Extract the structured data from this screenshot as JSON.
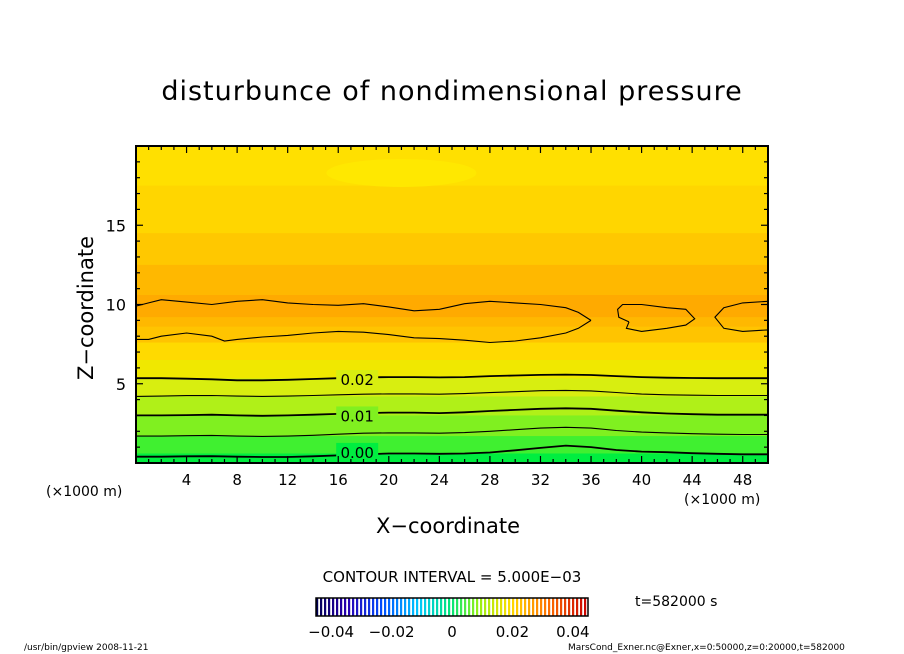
{
  "chart_data": {
    "type": "contour",
    "title": "disturbunce of nondimensional pressure",
    "xlabel": "X−coordinate",
    "ylabel": "Z−coordinate",
    "x_unit_label": "(×1000 m)",
    "x_ticks": [
      "4",
      "8",
      "12",
      "16",
      "20",
      "24",
      "28",
      "32",
      "36",
      "40",
      "44",
      "48"
    ],
    "y_ticks": [
      "5",
      "10",
      "15"
    ],
    "xlim": [
      0,
      50
    ],
    "ylim": [
      0,
      20
    ],
    "contour_interval_text": "CONTOUR INTERVAL = 5.000E−03",
    "contour_labels": [
      {
        "x": 17.5,
        "z": 5.3,
        "text": "0.02"
      },
      {
        "x": 17.5,
        "z": 3.0,
        "text": "0.01"
      },
      {
        "x": 17.5,
        "z": 0.7,
        "text": "0.00"
      }
    ],
    "contour_lines": [
      {
        "x": [
          0,
          2,
          4,
          6,
          8,
          10,
          12,
          14,
          16,
          18,
          20,
          22,
          24,
          26,
          28,
          30,
          32,
          34,
          36,
          38,
          40,
          42,
          44,
          46,
          48,
          50
        ],
        "z": [
          0.4,
          0.4,
          0.42,
          0.43,
          0.4,
          0.38,
          0.38,
          0.42,
          0.48,
          0.55,
          0.6,
          0.6,
          0.58,
          0.6,
          0.66,
          0.8,
          0.95,
          1.1,
          1.0,
          0.82,
          0.72,
          0.68,
          0.62,
          0.58,
          0.55,
          0.55
        ]
      },
      {
        "x": [
          0,
          2,
          4,
          6,
          8,
          10,
          12,
          14,
          16,
          18,
          20,
          22,
          24,
          26,
          28,
          30,
          32,
          34,
          36,
          38,
          40,
          42,
          44,
          46,
          48,
          50
        ],
        "z": [
          1.7,
          1.7,
          1.72,
          1.74,
          1.7,
          1.68,
          1.7,
          1.75,
          1.82,
          1.88,
          1.9,
          1.9,
          1.88,
          1.92,
          2.0,
          2.1,
          2.2,
          2.25,
          2.2,
          2.05,
          1.95,
          1.9,
          1.85,
          1.82,
          1.8,
          1.8
        ]
      },
      {
        "x": [
          0,
          2,
          4,
          6,
          8,
          10,
          12,
          14,
          16,
          18,
          20,
          22,
          24,
          26,
          28,
          30,
          32,
          34,
          36,
          38,
          40,
          42,
          44,
          46,
          48,
          50
        ],
        "z": [
          3.0,
          3.0,
          3.02,
          3.05,
          3.0,
          2.98,
          3.0,
          3.05,
          3.1,
          3.15,
          3.18,
          3.18,
          3.15,
          3.2,
          3.28,
          3.35,
          3.42,
          3.45,
          3.42,
          3.3,
          3.2,
          3.12,
          3.08,
          3.05,
          3.05,
          3.05
        ]
      },
      {
        "x": [
          0,
          2,
          4,
          6,
          8,
          10,
          12,
          14,
          16,
          18,
          20,
          22,
          24,
          26,
          28,
          30,
          32,
          34,
          36,
          38,
          40,
          42,
          44,
          46,
          48,
          50
        ],
        "z": [
          4.2,
          4.22,
          4.25,
          4.26,
          4.22,
          4.2,
          4.22,
          4.26,
          4.3,
          4.34,
          4.36,
          4.36,
          4.34,
          4.38,
          4.44,
          4.5,
          4.56,
          4.58,
          4.55,
          4.45,
          4.35,
          4.3,
          4.28,
          4.26,
          4.26,
          4.26
        ]
      },
      {
        "x": [
          0,
          2,
          4,
          6,
          8,
          10,
          12,
          14,
          16,
          18,
          20,
          22,
          24,
          26,
          28,
          30,
          32,
          34,
          36,
          38,
          40,
          42,
          44,
          46,
          48,
          50
        ],
        "z": [
          5.35,
          5.35,
          5.32,
          5.28,
          5.22,
          5.22,
          5.25,
          5.3,
          5.35,
          5.4,
          5.42,
          5.42,
          5.4,
          5.42,
          5.48,
          5.52,
          5.56,
          5.58,
          5.55,
          5.48,
          5.42,
          5.38,
          5.36,
          5.35,
          5.35,
          5.35
        ]
      },
      {
        "x": [
          0,
          1,
          2,
          4,
          6,
          7,
          8,
          10,
          12,
          14,
          16,
          18,
          20,
          21,
          22,
          24,
          26,
          28,
          30,
          32,
          34,
          35,
          36
        ],
        "z": [
          7.8,
          7.8,
          8.0,
          8.2,
          8.0,
          7.7,
          7.8,
          7.95,
          8.05,
          8.2,
          8.3,
          8.25,
          8.1,
          8.0,
          7.9,
          7.85,
          7.75,
          7.6,
          7.7,
          7.9,
          8.2,
          8.5,
          9.0
        ]
      },
      {
        "x": [
          36,
          35,
          34,
          32,
          30,
          28,
          26,
          24,
          22,
          20,
          18,
          16,
          14,
          12,
          10,
          8,
          6,
          4,
          2,
          1,
          0
        ],
        "z": [
          9.0,
          9.5,
          9.8,
          10.0,
          10.1,
          10.2,
          10.05,
          9.7,
          9.6,
          9.85,
          10.05,
          9.95,
          10.0,
          10.1,
          10.3,
          10.2,
          10.0,
          10.15,
          10.3,
          10.1,
          9.9
        ]
      },
      {
        "x": [
          39,
          38.2,
          38.1,
          38.5,
          40,
          42,
          43.5,
          44.2,
          43.5,
          42,
          40,
          38.8,
          39
        ],
        "z": [
          8.9,
          9.2,
          9.7,
          10.0,
          10.0,
          9.8,
          9.7,
          9.1,
          8.7,
          8.5,
          8.3,
          8.5,
          8.9
        ]
      },
      {
        "x": [
          50,
          48,
          46.5,
          45.8,
          46.5,
          48,
          50
        ],
        "z": [
          8.4,
          8.3,
          8.5,
          9.2,
          9.8,
          10.1,
          10.2
        ]
      }
    ],
    "colorbar": {
      "vmin": -0.045,
      "vmax": 0.045,
      "tick_values": [
        -0.04,
        -0.02,
        0,
        0.02,
        0.04
      ],
      "tick_labels": [
        "−0.04",
        "−0.02",
        "0",
        "0.02",
        "0.04"
      ]
    },
    "time_label": "t=582000 s"
  },
  "footer": {
    "left": "/usr/bin/gpview   2008-11-21",
    "right": "MarsCond_Exner.nc@Exner,x=0:50000,z=0:20000,t=582000"
  }
}
